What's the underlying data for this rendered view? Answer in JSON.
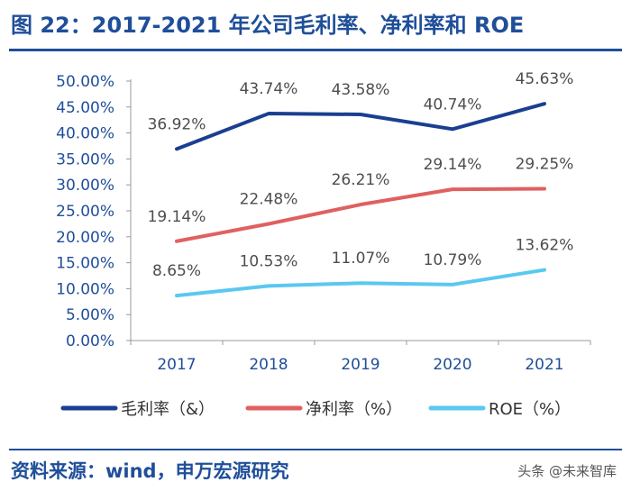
{
  "header": {
    "title": "图 22：2017-2021 年公司毛利率、净利率和 ROE"
  },
  "footer": {
    "source": "资料来源：wind，申万宏源研究",
    "watermark": "头条 @未来智库"
  },
  "colors": {
    "brand": "#1f4e9a",
    "axis_text": "#1f4e9a",
    "label_text": "#4d4d4d"
  },
  "chart_data": {
    "type": "line",
    "title": "",
    "xlabel": "",
    "ylabel": "",
    "categories": [
      "2017",
      "2018",
      "2019",
      "2020",
      "2021"
    ],
    "ylim": [
      0,
      50
    ],
    "y_ticks": [
      "0.00%",
      "5.00%",
      "10.00%",
      "15.00%",
      "20.00%",
      "25.00%",
      "30.00%",
      "35.00%",
      "40.00%",
      "45.00%",
      "50.00%"
    ],
    "grid": false,
    "legend_position": "bottom",
    "series": [
      {
        "name": "毛利率（&）",
        "color": "#1a3f91",
        "values": [
          36.92,
          43.74,
          43.58,
          40.74,
          45.63
        ],
        "labels": [
          "36.92%",
          "43.74%",
          "43.58%",
          "40.74%",
          "45.63%"
        ]
      },
      {
        "name": "净利率（%）",
        "color": "#e06060",
        "values": [
          19.14,
          22.48,
          26.21,
          29.14,
          29.25
        ],
        "labels": [
          "19.14%",
          "22.48%",
          "26.21%",
          "29.14%",
          "29.25%"
        ]
      },
      {
        "name": "ROE（%）",
        "color": "#5ac8f0",
        "values": [
          8.65,
          10.53,
          11.07,
          10.79,
          13.62
        ],
        "labels": [
          "8.65%",
          "10.53%",
          "11.07%",
          "10.79%",
          "13.62%"
        ]
      }
    ]
  }
}
